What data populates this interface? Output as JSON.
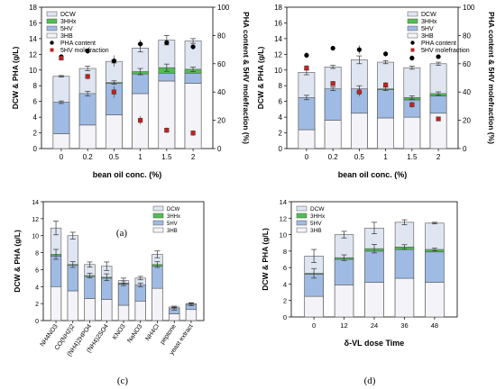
{
  "colors": {
    "dcw": "#dfe6f2",
    "hhx": "#4fbf4f",
    "hv": "#9fbbe3",
    "hb": "#f4f4f8",
    "pha": "#000000",
    "hvmol": "#c0221e"
  },
  "chart_data": [
    {
      "panel": "a",
      "caption": "(a)",
      "type": "bar",
      "xlabel": "bean oil conc. (%)",
      "ylabel": "DCW & PHA (g/L)",
      "y2label": "PHA content & 5HV molefraction (%)",
      "ylim": [
        0,
        18
      ],
      "yticks": [
        0,
        2,
        4,
        6,
        8,
        10,
        12,
        14,
        16,
        18
      ],
      "y2lim": [
        0,
        100
      ],
      "y2ticks": [
        0,
        20,
        40,
        60,
        80,
        100
      ],
      "categories": [
        "0",
        "0.2",
        "0.5",
        "1",
        "1.5",
        "2"
      ],
      "legend": [
        "DCW",
        "3HHx",
        "5HV",
        "3HB",
        "PHA content",
        "5HV molefraction"
      ],
      "legend_position": "top-left",
      "dcw": [
        9.2,
        10.2,
        11.1,
        12.8,
        13.8,
        13.7
      ],
      "hhx": [
        0.0,
        0.0,
        0.1,
        0.3,
        0.7,
        0.5
      ],
      "hv": [
        4.0,
        4.0,
        4.0,
        2.5,
        1.0,
        1.3
      ],
      "hb": [
        1.9,
        3.0,
        4.3,
        7.0,
        8.6,
        8.3
      ],
      "dcw_err": [
        0.1,
        0.3,
        0.2,
        0.5,
        0.6,
        0.3
      ],
      "pha_content": [
        65,
        69,
        62,
        74,
        75,
        72
      ],
      "hv_molfrac": [
        64,
        51,
        40,
        20,
        13,
        11
      ],
      "y2_points_err": [
        1.5,
        2,
        4,
        3,
        2,
        2
      ]
    },
    {
      "panel": "b",
      "caption": "(b)",
      "type": "bar",
      "xlabel": "bean oil conc. (%)",
      "ylabel": "DCW & PHA (g/L)",
      "y2label": "PHA content & 5HV molefraction (%)",
      "ylim": [
        0,
        18
      ],
      "yticks": [
        0,
        2,
        4,
        6,
        8,
        10,
        12,
        14,
        16,
        18
      ],
      "y2lim": [
        0,
        100
      ],
      "y2ticks": [
        0,
        20,
        40,
        60,
        80,
        100
      ],
      "categories": [
        "0",
        "0.2",
        "0.5",
        "1",
        "1.5",
        "2"
      ],
      "legend": [
        "DCW",
        "3HHx",
        "5HV",
        "3HB",
        "PHA content",
        "5HV molefraction"
      ],
      "legend_position": "top-right",
      "dcw": [
        9.7,
        10.4,
        11.3,
        11.0,
        10.3,
        10.8
      ],
      "hhx": [
        0.0,
        0.0,
        0.0,
        0.1,
        0.3,
        0.3
      ],
      "hv": [
        4.1,
        4.0,
        3.1,
        3.6,
        2.2,
        2.2
      ],
      "hb": [
        2.4,
        3.6,
        4.5,
        3.9,
        4.0,
        4.5
      ],
      "dcw_err": [
        0.3,
        0.2,
        0.5,
        0.2,
        0.2,
        0.2
      ],
      "pha_content": [
        66,
        71,
        70,
        67,
        64,
        65
      ],
      "hv_molfrac": [
        57,
        46,
        40,
        45,
        31,
        21
      ],
      "y2_points_err": [
        2,
        1,
        3,
        2,
        2,
        1
      ]
    },
    {
      "panel": "c",
      "caption": "(c)",
      "type": "bar",
      "xlabel": "",
      "ylabel": "DCW & PHA (g/L)",
      "ylim": [
        0,
        14
      ],
      "yticks": [
        0,
        2,
        4,
        6,
        8,
        10,
        12,
        14
      ],
      "categories": [
        "NH4NO3",
        "CO(NH2)2",
        "(NH4)2HPO4",
        "(NH4)2SO4",
        "KNO3",
        "NaNO3",
        "NH4Cl",
        "peptone",
        "yeast extract"
      ],
      "legend": [
        "DCW",
        "3HHx",
        "5HV",
        "3HB"
      ],
      "legend_position": "top-right",
      "dcw": [
        10.9,
        10.0,
        6.6,
        6.4,
        4.7,
        5.0,
        7.8,
        1.6,
        2.0
      ],
      "hhx": [
        0.2,
        0.1,
        0.1,
        0.1,
        0.1,
        0.0,
        0.2,
        0.0,
        0.0
      ],
      "hv": [
        3.6,
        3.0,
        2.6,
        2.5,
        2.5,
        1.9,
        2.6,
        0.6,
        0.6
      ],
      "hb": [
        4.0,
        3.5,
        2.6,
        2.5,
        1.8,
        2.3,
        3.8,
        0.8,
        1.3
      ],
      "dcw_err": [
        0.8,
        0.4,
        0.3,
        0.5,
        0.3,
        0.2,
        0.4,
        0.1,
        0.1
      ]
    },
    {
      "panel": "d",
      "caption": "(d)",
      "type": "bar",
      "xlabel": "δ-VL dose Time",
      "ylabel": "DCW & PHA (g/L)",
      "ylim": [
        0,
        14
      ],
      "yticks": [
        0,
        2,
        4,
        6,
        8,
        10,
        12,
        14
      ],
      "categories": [
        "0",
        "12",
        "24",
        "36",
        "48"
      ],
      "legend": [
        "DCW",
        "3HHx",
        "5HV",
        "3HB"
      ],
      "legend_position": "top-left",
      "dcw": [
        7.4,
        10.0,
        10.8,
        11.5,
        11.4
      ],
      "hhx": [
        0.1,
        0.2,
        0.3,
        0.3,
        0.3
      ],
      "hv": [
        2.7,
        3.1,
        3.8,
        3.5,
        3.7
      ],
      "hb": [
        2.5,
        3.9,
        4.2,
        4.7,
        4.2
      ],
      "dcw_err": [
        0.8,
        0.4,
        0.7,
        0.3,
        0.1
      ]
    }
  ]
}
